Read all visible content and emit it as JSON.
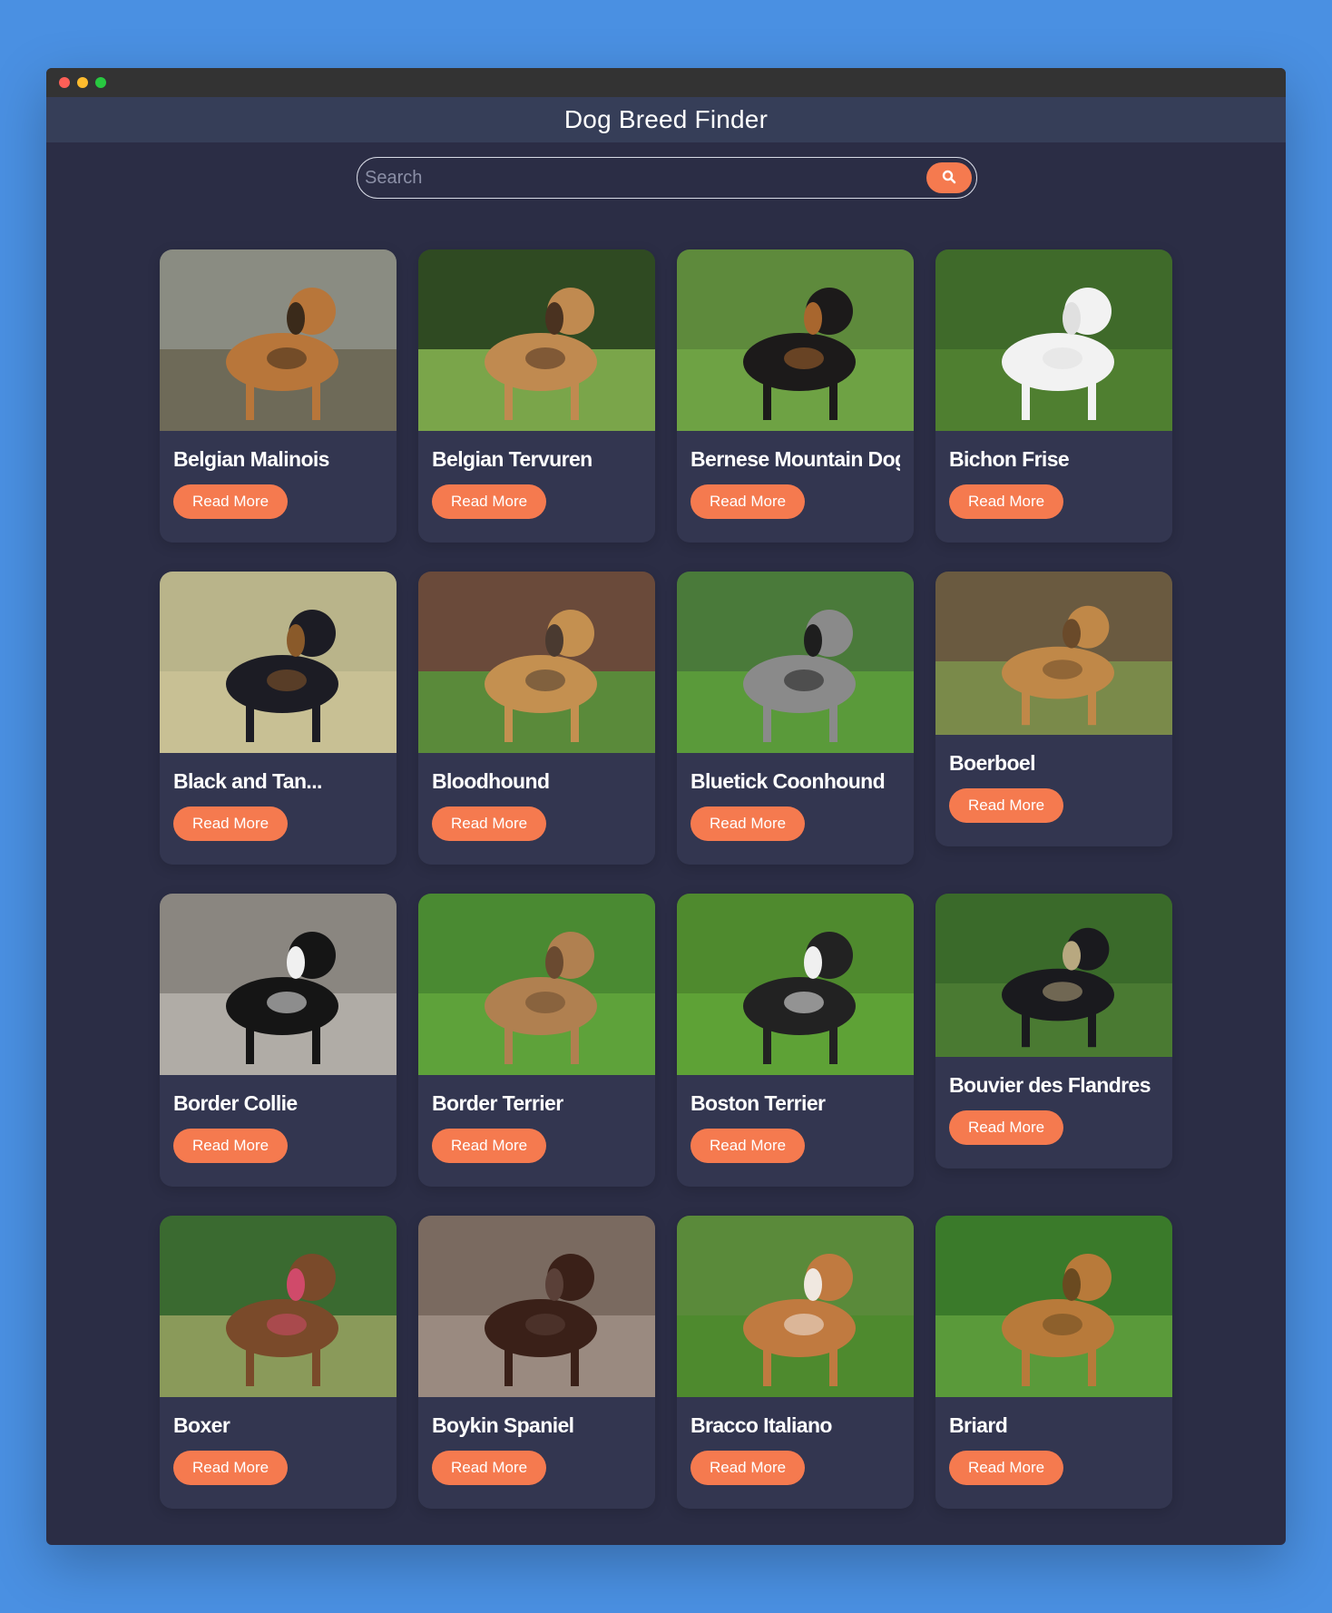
{
  "app": {
    "title": "Dog Breed Finder"
  },
  "search": {
    "placeholder": "Search",
    "value": "",
    "icon": "search-icon"
  },
  "breeds": [
    {
      "name": "Belgian Malinois",
      "button": "Read More",
      "photo": {
        "bg": "#8a8c82",
        "ground": "#6e6a58",
        "dog": "#b8763a",
        "dark": "#3a2a1a"
      }
    },
    {
      "name": "Belgian Tervuren",
      "button": "Read More",
      "photo": {
        "bg": "#2f4a22",
        "ground": "#7aa54a",
        "dog": "#c08a50",
        "dark": "#4a3220"
      }
    },
    {
      "name": "Bernese Mountain Dog",
      "button": "Read More",
      "photo": {
        "bg": "#5e8a3c",
        "ground": "#6ea244",
        "dog": "#1c1a1a",
        "dark": "#a8662e"
      }
    },
    {
      "name": "Bichon Frise",
      "button": "Read More",
      "photo": {
        "bg": "#3f6a2a",
        "ground": "#4f7f30",
        "dog": "#f2f2f2",
        "dark": "#e0e0e0"
      }
    },
    {
      "name": "Black and Tan...",
      "button": "Read More",
      "photo": {
        "bg": "#b9b48a",
        "ground": "#c8c094",
        "dog": "#1c1c24",
        "dark": "#8a5a2a"
      }
    },
    {
      "name": "Bloodhound",
      "button": "Read More",
      "photo": {
        "bg": "#6a4a3a",
        "ground": "#5a8a3a",
        "dog": "#c49050",
        "dark": "#4a3a30"
      }
    },
    {
      "name": "Bluetick Coonhound",
      "button": "Read More",
      "photo": {
        "bg": "#4a7a3a",
        "ground": "#5a9a3a",
        "dog": "#8a8a8a",
        "dark": "#1e1e1e"
      }
    },
    {
      "name": "Boerboel",
      "button": "Read More",
      "photo": {
        "bg": "#6a5a40",
        "ground": "#7a8a4a",
        "dog": "#c08848",
        "dark": "#6a4a2a"
      }
    },
    {
      "name": "Border Collie",
      "button": "Read More",
      "photo": {
        "bg": "#8a8680",
        "ground": "#b0aca6",
        "dog": "#151515",
        "dark": "#f0f0f0"
      }
    },
    {
      "name": "Border Terrier",
      "button": "Read More",
      "photo": {
        "bg": "#4a8a32",
        "ground": "#5ea23a",
        "dog": "#b08050",
        "dark": "#6a4a30"
      }
    },
    {
      "name": "Boston Terrier",
      "button": "Read More",
      "photo": {
        "bg": "#4f8a2e",
        "ground": "#5ea236",
        "dog": "#222222",
        "dark": "#f0f0f0"
      }
    },
    {
      "name": "Bouvier des Flandres",
      "button": "Read More",
      "photo": {
        "bg": "#3a6a2a",
        "ground": "#4a7a32",
        "dog": "#1a1a1e",
        "dark": "#b8a880"
      }
    },
    {
      "name": "Boxer",
      "button": "Read More",
      "photo": {
        "bg": "#3a6a30",
        "ground": "#8a9a5a",
        "dog": "#7a4a2a",
        "dark": "#d04a6a"
      }
    },
    {
      "name": "Boykin Spaniel",
      "button": "Read More",
      "photo": {
        "bg": "#7a6a60",
        "ground": "#9a8a80",
        "dog": "#3a2018",
        "dark": "#5a4038"
      }
    },
    {
      "name": "Bracco Italiano",
      "button": "Read More",
      "photo": {
        "bg": "#5a8a3a",
        "ground": "#4e8a2e",
        "dog": "#c07a40",
        "dark": "#f0e8e0"
      }
    },
    {
      "name": "Briard",
      "button": "Read More",
      "photo": {
        "bg": "#3a7a2a",
        "ground": "#5a9a3a",
        "dog": "#b87a3a",
        "dark": "#6a4a20"
      }
    }
  ],
  "colors": {
    "accent": "#f57a4f",
    "background": "#2b2d45",
    "card": "#333650",
    "header": "#363e58",
    "page": "#4a90e2"
  }
}
